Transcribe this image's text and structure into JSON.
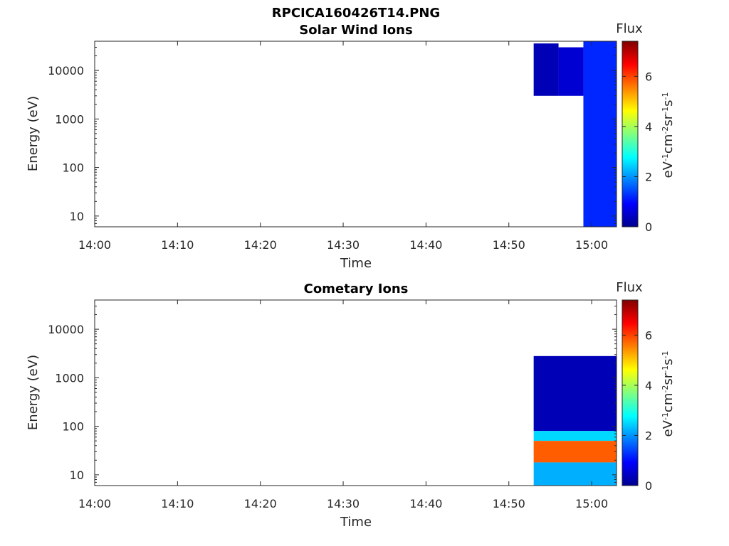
{
  "figure_title": "RPCICA160426T14.PNG",
  "chart_data": [
    {
      "type": "heatmap",
      "title": "Solar Wind Ions",
      "xlabel": "Time",
      "ylabel": "Energy (eV)",
      "x_ticks": [
        "14:00",
        "14:10",
        "14:20",
        "14:30",
        "14:40",
        "14:50",
        "15:00"
      ],
      "y_ticks": [
        "10",
        "100",
        "1000",
        "10000"
      ],
      "y_scale": "log",
      "y_range": [
        6,
        40000
      ],
      "x_range": [
        "14:00",
        "15:03"
      ],
      "colorbar": {
        "label": "Flux",
        "units": "eV-1cm-2sr-1s-1",
        "ticks": [
          "0",
          "2",
          "4",
          "6"
        ],
        "range": [
          0,
          7.4
        ],
        "colormap": "jet"
      },
      "blocks": [
        {
          "t0": "14:53:00",
          "t1": "14:56:00",
          "e0": 3000,
          "e1": 36000,
          "level": 0.4
        },
        {
          "t0": "14:56:00",
          "t1": "14:59:00",
          "e0": 3000,
          "e1": 30000,
          "level": 0.6
        },
        {
          "t0": "14:59:00",
          "t1": "15:03:00",
          "e0": 6,
          "e1": 40000,
          "level": 1.2
        }
      ]
    },
    {
      "type": "heatmap",
      "title": "Cometary Ions",
      "xlabel": "Time",
      "ylabel": "Energy (eV)",
      "x_ticks": [
        "14:00",
        "14:10",
        "14:20",
        "14:30",
        "14:40",
        "14:50",
        "15:00"
      ],
      "y_ticks": [
        "10",
        "100",
        "1000",
        "10000"
      ],
      "y_scale": "log",
      "y_range": [
        6,
        40000
      ],
      "x_range": [
        "14:00",
        "15:03"
      ],
      "colorbar": {
        "label": "Flux",
        "units": "eV-1cm-2sr-1s-1",
        "ticks": [
          "0",
          "2",
          "4",
          "6"
        ],
        "range": [
          0,
          7.4
        ],
        "colormap": "jet"
      },
      "blocks": [
        {
          "t0": "14:53:00",
          "t1": "15:03:00",
          "e0": 80,
          "e1": 2800,
          "level": 0.4
        },
        {
          "t0": "14:53:00",
          "t1": "15:03:00",
          "e0": 50,
          "e1": 80,
          "level": 2.5
        },
        {
          "t0": "14:53:00",
          "t1": "15:03:00",
          "e0": 18,
          "e1": 50,
          "level": 5.8
        },
        {
          "t0": "14:53:00",
          "t1": "15:03:00",
          "e0": 6,
          "e1": 18,
          "level": 2.2
        }
      ]
    }
  ]
}
